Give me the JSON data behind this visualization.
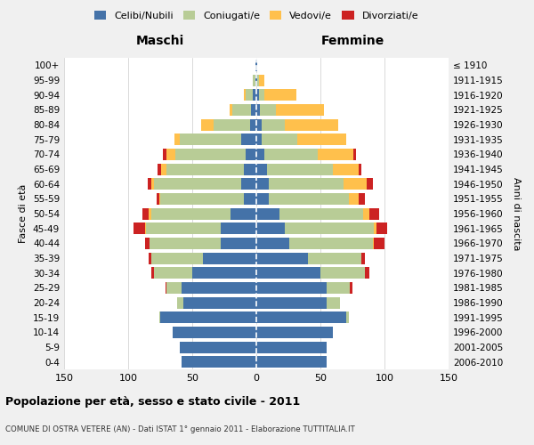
{
  "age_groups": [
    "0-4",
    "5-9",
    "10-14",
    "15-19",
    "20-24",
    "25-29",
    "30-34",
    "35-39",
    "40-44",
    "45-49",
    "50-54",
    "55-59",
    "60-64",
    "65-69",
    "70-74",
    "75-79",
    "80-84",
    "85-89",
    "90-94",
    "95-99",
    "100+"
  ],
  "birth_years": [
    "2006-2010",
    "2001-2005",
    "1996-2000",
    "1991-1995",
    "1986-1990",
    "1981-1985",
    "1976-1980",
    "1971-1975",
    "1966-1970",
    "1961-1965",
    "1956-1960",
    "1951-1955",
    "1946-1950",
    "1941-1945",
    "1936-1940",
    "1931-1935",
    "1926-1930",
    "1921-1925",
    "1916-1920",
    "1911-1915",
    "≤ 1910"
  ],
  "maschi": {
    "celibi": [
      58,
      60,
      65,
      75,
      57,
      58,
      50,
      42,
      28,
      28,
      20,
      10,
      12,
      10,
      8,
      12,
      5,
      4,
      3,
      1,
      1
    ],
    "coniugati": [
      0,
      0,
      0,
      1,
      5,
      12,
      30,
      40,
      55,
      58,
      62,
      65,
      68,
      60,
      55,
      48,
      28,
      15,
      5,
      2,
      0
    ],
    "vedovi": [
      0,
      0,
      0,
      0,
      0,
      0,
      0,
      0,
      0,
      1,
      2,
      1,
      2,
      4,
      7,
      4,
      10,
      2,
      2,
      0,
      0
    ],
    "divorziati": [
      0,
      0,
      0,
      0,
      0,
      1,
      2,
      2,
      4,
      9,
      5,
      2,
      3,
      3,
      3,
      0,
      0,
      0,
      0,
      0,
      0
    ]
  },
  "femmine": {
    "nubili": [
      55,
      55,
      60,
      70,
      55,
      55,
      50,
      40,
      26,
      22,
      18,
      10,
      10,
      8,
      6,
      4,
      4,
      3,
      2,
      1,
      1
    ],
    "coniugate": [
      0,
      0,
      0,
      2,
      10,
      18,
      35,
      42,
      65,
      70,
      65,
      62,
      58,
      52,
      42,
      28,
      18,
      12,
      4,
      1,
      0
    ],
    "vedove": [
      0,
      0,
      0,
      0,
      0,
      0,
      0,
      0,
      1,
      2,
      5,
      8,
      18,
      20,
      28,
      38,
      42,
      38,
      25,
      4,
      0
    ],
    "divorziate": [
      0,
      0,
      0,
      0,
      0,
      2,
      3,
      3,
      8,
      8,
      8,
      5,
      5,
      2,
      2,
      0,
      0,
      0,
      0,
      0,
      0
    ]
  },
  "colors": {
    "celibi": "#4472a8",
    "coniugati": "#b8cc96",
    "vedovi": "#ffc04c",
    "divorziati": "#cc2222"
  },
  "title": "Popolazione per età, sesso e stato civile - 2011",
  "subtitle": "COMUNE DI OSTRA VETERE (AN) - Dati ISTAT 1° gennaio 2011 - Elaborazione TUTTITALIA.IT",
  "xlabel_left": "Maschi",
  "xlabel_right": "Femmine",
  "ylabel_left": "Fasce di età",
  "ylabel_right": "Anni di nascita",
  "xlim": 150,
  "xtick_step": 50,
  "legend_labels": [
    "Celibi/Nubili",
    "Coniugati/e",
    "Vedovi/e",
    "Divorziati/e"
  ],
  "bg_color": "#f0f0f0",
  "plot_bg": "#ffffff"
}
